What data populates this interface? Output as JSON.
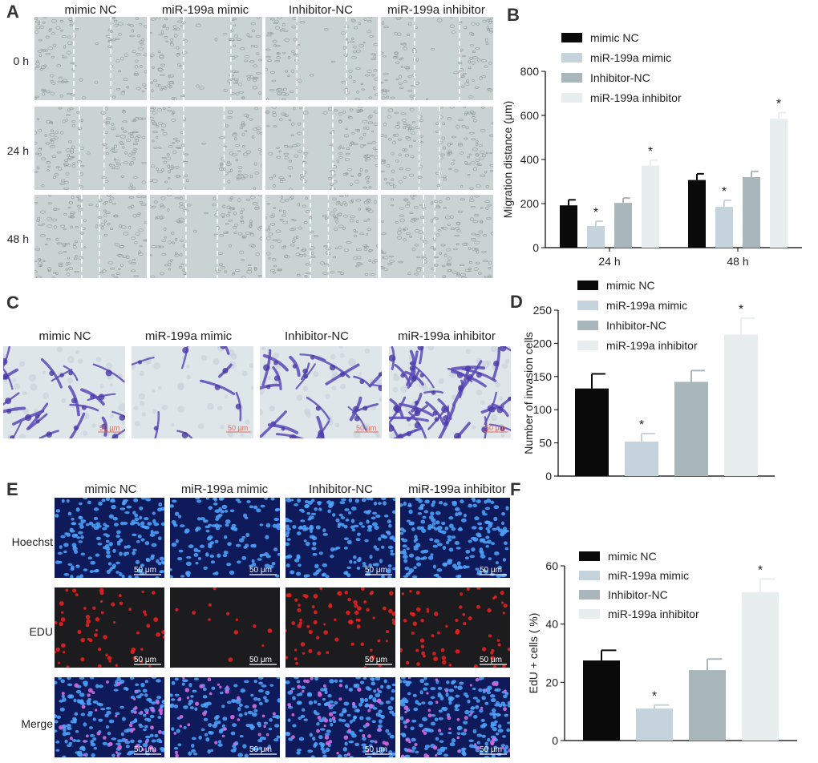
{
  "panels": {
    "A": "A",
    "B": "B",
    "C": "C",
    "D": "D",
    "E": "E",
    "F": "F"
  },
  "panelA": {
    "columns": [
      "mimic NC",
      "miR-199a mimic",
      "Inhibitor-NC",
      "miR-199a inhibitor"
    ],
    "rows": [
      "0 h",
      "24 h",
      "48 h"
    ]
  },
  "panelC": {
    "columns": [
      "mimic NC",
      "miR-199a mimic",
      "Inhibitor-NC",
      "miR-199a inhibitor"
    ],
    "scalebar": "50 μm"
  },
  "panelE": {
    "columns": [
      "mimic NC",
      "miR-199a mimic",
      "Inhibitor-NC",
      "miR-199a inhibitor"
    ],
    "rows": [
      "Hoechst",
      "EDU",
      "Merge"
    ],
    "scalebar": "50 μm"
  },
  "colors": {
    "mimic_nc": "#0a0a0a",
    "mir_mimic": "#c5d4dc",
    "inhibitor_nc": "#a9b6bb",
    "mir_inhibitor": "#e8eeee"
  },
  "chart_data": [
    {
      "id": "B",
      "type": "bar",
      "categories": [
        "24 h",
        "48 h"
      ],
      "ylabel": "Migration distance (μm)",
      "ylim": [
        0,
        800
      ],
      "yticks": [
        0,
        200,
        400,
        600,
        800
      ],
      "series": [
        {
          "name": "mimic NC",
          "values": [
            192,
            307
          ],
          "errors": [
            25,
            28
          ],
          "sig": [
            "",
            ""
          ]
        },
        {
          "name": "miR-199a mimic",
          "values": [
            98,
            185
          ],
          "errors": [
            22,
            30
          ],
          "sig": [
            "*",
            "*"
          ]
        },
        {
          "name": "Inhibitor-NC",
          "values": [
            203,
            320
          ],
          "errors": [
            22,
            26
          ],
          "sig": [
            "",
            ""
          ]
        },
        {
          "name": "miR-199a inhibitor",
          "values": [
            372,
            585
          ],
          "errors": [
            25,
            28
          ],
          "sig": [
            "*",
            "*"
          ]
        }
      ]
    },
    {
      "id": "D",
      "type": "bar",
      "categories": [
        ""
      ],
      "ylabel": "Number of invasion cells",
      "ylim": [
        0,
        250
      ],
      "yticks": [
        0,
        50,
        100,
        150,
        200,
        250
      ],
      "series": [
        {
          "name": "mimic NC",
          "values": [
            132
          ],
          "errors": [
            22
          ],
          "sig": [
            ""
          ]
        },
        {
          "name": "miR-199a mimic",
          "values": [
            52
          ],
          "errors": [
            12
          ],
          "sig": [
            "*"
          ]
        },
        {
          "name": "Inhibitor-NC",
          "values": [
            142
          ],
          "errors": [
            17
          ],
          "sig": [
            ""
          ]
        },
        {
          "name": "miR-199a inhibitor",
          "values": [
            213
          ],
          "errors": [
            25
          ],
          "sig": [
            "*"
          ]
        }
      ]
    },
    {
      "id": "F",
      "type": "bar",
      "categories": [
        ""
      ],
      "ylabel": "EdU + cells ( %)",
      "ylim": [
        0,
        60
      ],
      "yticks": [
        0,
        20,
        40,
        60
      ],
      "series": [
        {
          "name": "mimic NC",
          "values": [
            27.5
          ],
          "errors": [
            3.5
          ],
          "sig": [
            ""
          ]
        },
        {
          "name": "miR-199a mimic",
          "values": [
            11
          ],
          "errors": [
            1.2
          ],
          "sig": [
            "*"
          ]
        },
        {
          "name": "Inhibitor-NC",
          "values": [
            24.2
          ],
          "errors": [
            3.8
          ],
          "sig": [
            ""
          ]
        },
        {
          "name": "miR-199a inhibitor",
          "values": [
            51
          ],
          "errors": [
            4.5
          ],
          "sig": [
            "*"
          ]
        }
      ]
    }
  ]
}
